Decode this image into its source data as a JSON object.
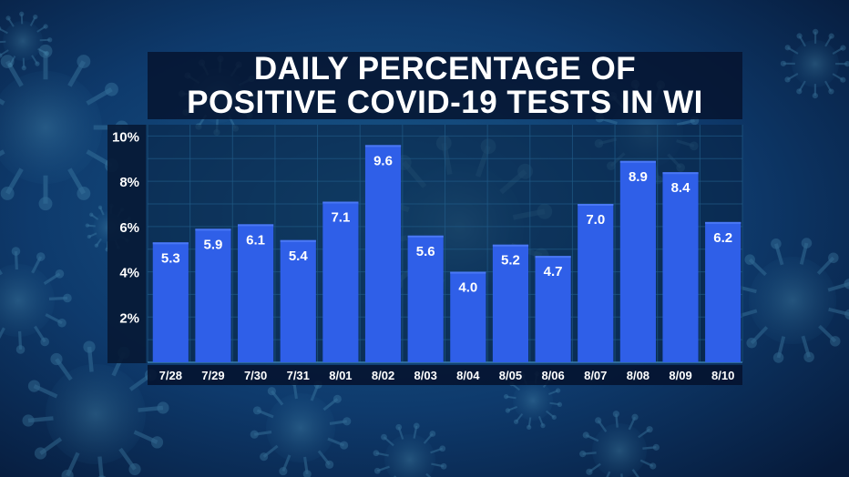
{
  "title_lines": [
    "DAILY PERCENTAGE OF",
    "POSITIVE COVID-19 TESTS IN WI"
  ],
  "chart_data": {
    "type": "bar",
    "title": "DAILY PERCENTAGE OF POSITIVE COVID-19 TESTS IN WI",
    "categories": [
      "7/28",
      "7/29",
      "7/30",
      "7/31",
      "8/01",
      "8/02",
      "8/03",
      "8/04",
      "8/05",
      "8/06",
      "8/07",
      "8/08",
      "8/09",
      "8/10"
    ],
    "values": [
      5.3,
      5.9,
      6.1,
      5.4,
      7.1,
      9.6,
      5.6,
      4.0,
      5.2,
      4.7,
      7.0,
      8.9,
      8.4,
      6.2
    ],
    "data_labels": [
      "5.3",
      "5.9",
      "6.1",
      "5.4",
      "7.1",
      "9.6",
      "5.6",
      "4.0",
      "5.2",
      "4.7",
      "7.0",
      "8.9",
      "8.4",
      "6.2"
    ],
    "y_ticks": [
      2,
      4,
      6,
      8,
      10
    ],
    "y_tick_labels": [
      "2%",
      "4%",
      "6%",
      "8%",
      "10%"
    ],
    "ylim": [
      0,
      10.5
    ],
    "xlabel": "",
    "ylabel": "",
    "grid": true,
    "colors": {
      "bar": "#2f5fe8",
      "bar_highlight": "#4a78f5",
      "label_text": "#ffffff",
      "panel": "#08203f",
      "grid": "#1f5a86"
    }
  }
}
